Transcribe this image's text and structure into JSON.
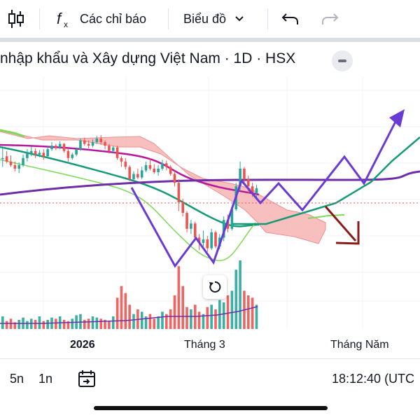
{
  "toolbar": {
    "candle_icon": "candlestick-icon",
    "indicators_icon": "fx-icon",
    "indicators_label": "Các chỉ báo",
    "chart_type_label": "Biểu đồ",
    "undo_icon": "undo-icon",
    "redo_icon": "redo-icon"
  },
  "symbol": {
    "title": "nhập khẩu và Xây dựng Việt Nam · 1D · HSX"
  },
  "x_axis": {
    "labels": [
      "2026",
      "Tháng 3",
      "Tháng Năm"
    ]
  },
  "bottom_bar": {
    "range_5d": "5n",
    "range_1d": "1n",
    "goto_icon": "goto-date-icon",
    "time": "18:12:40 (UTC"
  },
  "colors": {
    "up": "#26a69a",
    "down": "#ef5350",
    "cloud": "#f7b4b4",
    "ma_purple": "#6f2da8",
    "ma_magenta": "#b5179e",
    "ma_green": "#159a78",
    "ma_lime": "#7ed957",
    "scenario": "#6a3ad6",
    "bear_arrow": "#8b1a1a"
  },
  "chart_data": {
    "type": "candlestick",
    "ohlc": [
      [
        70,
        70,
        82,
        60
      ],
      [
        72,
        66,
        78,
        64
      ],
      [
        66,
        62,
        73,
        60
      ],
      [
        62,
        58,
        66,
        55
      ],
      [
        58,
        62,
        65,
        53
      ],
      [
        62,
        70,
        74,
        60
      ],
      [
        70,
        75,
        80,
        66
      ],
      [
        75,
        78,
        83,
        72
      ],
      [
        78,
        74,
        81,
        70
      ],
      [
        74,
        76,
        79,
        71
      ],
      [
        76,
        72,
        80,
        68
      ],
      [
        72,
        80,
        83,
        70
      ],
      [
        80,
        84,
        88,
        78
      ],
      [
        84,
        82,
        86,
        79
      ],
      [
        82,
        86,
        89,
        80
      ],
      [
        86,
        78,
        87,
        76
      ],
      [
        78,
        70,
        80,
        66
      ],
      [
        70,
        74,
        76,
        68
      ],
      [
        74,
        80,
        82,
        72
      ],
      [
        80,
        90,
        92,
        78
      ],
      [
        90,
        86,
        93,
        84
      ],
      [
        86,
        84,
        90,
        81
      ],
      [
        84,
        88,
        91,
        82
      ],
      [
        88,
        92,
        95,
        86
      ],
      [
        92,
        88,
        96,
        85
      ],
      [
        88,
        84,
        90,
        80
      ],
      [
        84,
        78,
        86,
        75
      ],
      [
        78,
        82,
        84,
        76
      ],
      [
        82,
        70,
        84,
        68
      ],
      [
        70,
        66,
        72,
        60
      ],
      [
        66,
        60,
        70,
        57
      ],
      [
        60,
        46,
        62,
        44
      ],
      [
        46,
        52,
        55,
        44
      ],
      [
        52,
        48,
        58,
        46
      ],
      [
        48,
        56,
        60,
        46
      ],
      [
        56,
        62,
        66,
        54
      ],
      [
        62,
        58,
        70,
        56
      ],
      [
        58,
        54,
        63,
        52
      ],
      [
        54,
        58,
        62,
        50
      ],
      [
        58,
        64,
        68,
        56
      ],
      [
        64,
        60,
        67,
        56
      ],
      [
        60,
        52,
        62,
        50
      ],
      [
        52,
        42,
        54,
        38
      ],
      [
        42,
        20,
        46,
        10
      ],
      [
        20,
        8,
        24,
        4
      ],
      [
        8,
        -10,
        10,
        -14
      ],
      [
        -10,
        -4,
        0,
        -16
      ],
      [
        -4,
        -20,
        -2,
        -24
      ],
      [
        -20,
        -26,
        -16,
        -34
      ],
      [
        -26,
        -22,
        -12,
        -30
      ],
      [
        -22,
        -32,
        -18,
        -36
      ],
      [
        -32,
        -14,
        -10,
        -34
      ],
      [
        -14,
        -30,
        -12,
        -32
      ],
      [
        -30,
        -20,
        -16,
        -33
      ],
      [
        -20,
        0,
        4,
        -24
      ],
      [
        0,
        -10,
        6,
        -14
      ],
      [
        -10,
        12,
        16,
        -12
      ],
      [
        12,
        38,
        42,
        10
      ],
      [
        38,
        58,
        66,
        34
      ],
      [
        58,
        46,
        60,
        40
      ],
      [
        46,
        38,
        50,
        30
      ],
      [
        38,
        30,
        42,
        26
      ],
      [
        30,
        36,
        40,
        24
      ]
    ],
    "volume": [
      12,
      8,
      10,
      7,
      9,
      11,
      8,
      10,
      9,
      12,
      8,
      9,
      11,
      10,
      12,
      9,
      8,
      10,
      13,
      14,
      9,
      10,
      12,
      11,
      10,
      9,
      8,
      12,
      28,
      38,
      32,
      22,
      14,
      18,
      16,
      12,
      14,
      10,
      12,
      16,
      14,
      18,
      30,
      55,
      38,
      20,
      18,
      22,
      16,
      14,
      20,
      22,
      18,
      26,
      24,
      30,
      34,
      52,
      60,
      34,
      30,
      28,
      22
    ],
    "ylim": [
      -60,
      130
    ]
  }
}
